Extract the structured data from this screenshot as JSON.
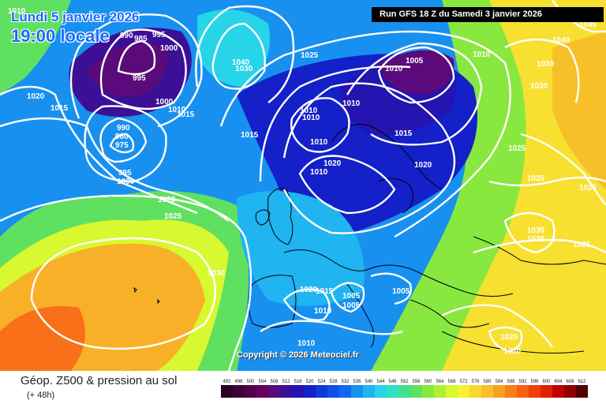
{
  "header": {
    "date_line": "Lundi 5 janvier 2026",
    "time_line": "19:00 locale",
    "run_info": "Run GFS 18 Z du Samedi 3 janvier 2026"
  },
  "footer": {
    "title": "Géop. Z500 & pression au sol",
    "lead_time": "(+ 48h)",
    "copyright": "Copyright © 2026 Meteociel.fr"
  },
  "legend": {
    "values": [
      "492",
      "496",
      "500",
      "504",
      "508",
      "512",
      "516",
      "520",
      "524",
      "528",
      "532",
      "536",
      "540",
      "544",
      "548",
      "552",
      "556",
      "560",
      "564",
      "568",
      "572",
      "576",
      "580",
      "584",
      "588",
      "592",
      "596",
      "600",
      "604",
      "608",
      "612"
    ],
    "colors": [
      "#2a0026",
      "#3e0038",
      "#52004a",
      "#65005c",
      "#5a0a7a",
      "#3c1096",
      "#2414b0",
      "#1420c8",
      "#1038d8",
      "#1050e8",
      "#1068f0",
      "#1890f0",
      "#20b4f0",
      "#28d4e8",
      "#30e0c0",
      "#40e090",
      "#60e060",
      "#88e840",
      "#b0f030",
      "#d8f830",
      "#f8f030",
      "#f8d830",
      "#f8c028",
      "#f8a020",
      "#f88018",
      "#f86010",
      "#f04008",
      "#e02000",
      "#c00000",
      "#900000",
      "#500000"
    ]
  },
  "isobar_labels": [
    "1010",
    "990",
    "985",
    "995",
    "1000",
    "995",
    "1020",
    "1015",
    "1000",
    "1010",
    "1015",
    "990",
    "980",
    "975",
    "995",
    "1000",
    "1040",
    "1030",
    "1025",
    "1010",
    "1005",
    "1010",
    "1015",
    "1010",
    "1010",
    "1020",
    "1010",
    "1010",
    "1020",
    "1010",
    "1015",
    "1025",
    "1040",
    "1030",
    "1030",
    "1025",
    "1025",
    "1020",
    "1025",
    "1030",
    "1035",
    "1030",
    "1025",
    "1020",
    "1015",
    "1005",
    "1005",
    "1005",
    "1010",
    "1010",
    "1020",
    "1020",
    "1045"
  ]
}
